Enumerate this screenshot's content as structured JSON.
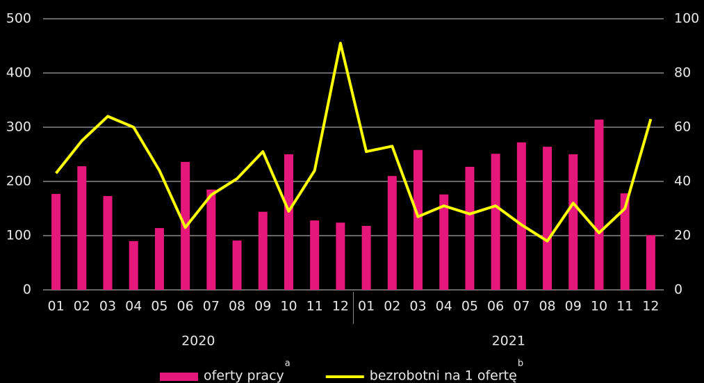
{
  "chart_data": {
    "type": "bar_line",
    "categories": [
      "01",
      "02",
      "03",
      "04",
      "05",
      "06",
      "07",
      "08",
      "09",
      "10",
      "11",
      "12",
      "01",
      "02",
      "03",
      "04",
      "05",
      "06",
      "07",
      "08",
      "09",
      "10",
      "11",
      "12"
    ],
    "groups": [
      {
        "label": "2020",
        "count": 12
      },
      {
        "label": "2021",
        "count": 12
      }
    ],
    "series": [
      {
        "name": "oferty pracy",
        "note": "a",
        "type": "bar",
        "color": "#e5177b",
        "axis": "y",
        "values": [
          177,
          228,
          173,
          90,
          114,
          236,
          185,
          91,
          144,
          250,
          128,
          124,
          118,
          210,
          258,
          176,
          227,
          251,
          272,
          264,
          250,
          314,
          178,
          101
        ]
      },
      {
        "name": "bezrobotni na 1 ofertę",
        "note": "b",
        "type": "line",
        "color": "#ffff00",
        "axis": "y2",
        "values": [
          43,
          55,
          64,
          60,
          44,
          23,
          35,
          41,
          51,
          29,
          44,
          91,
          51,
          53,
          27,
          31,
          28,
          31,
          24,
          18,
          32,
          21,
          30,
          63
        ]
      }
    ],
    "ylim": [
      0,
      500
    ],
    "yticks": [
      0,
      100,
      200,
      300,
      400,
      500
    ],
    "y2lim": [
      0,
      100
    ],
    "y2ticks": [
      0,
      20,
      40,
      60,
      80,
      100
    ],
    "grid": true
  }
}
